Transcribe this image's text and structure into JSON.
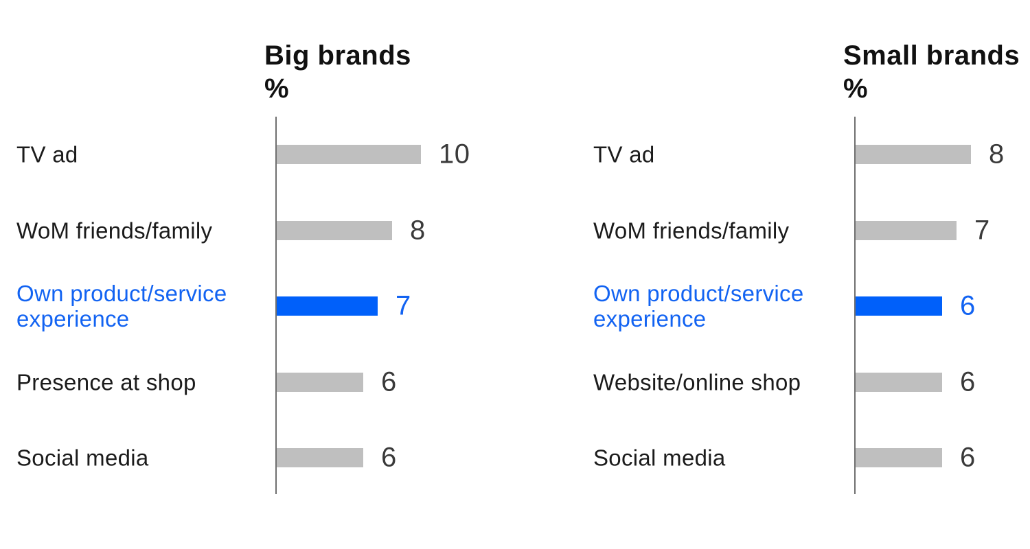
{
  "colors": {
    "bar_gray": "#bfbfbf",
    "bar_blue": "#0060fa",
    "text_blue": "#1263f2",
    "label_dark": "#1b1b1b",
    "value_dark": "#3a3a3a",
    "axis_gray": "#6f6f6f",
    "title_dark": "#111111"
  },
  "chart_data": [
    {
      "type": "bar",
      "orientation": "horizontal",
      "title": "Big brands",
      "unit_label": "%",
      "categories": [
        "TV ad",
        "WoM friends/family",
        "Own product/service experience",
        "Presence at shop",
        "Social media"
      ],
      "values": [
        10,
        8,
        7,
        6,
        6
      ],
      "value_labels": [
        "10",
        "8",
        "7",
        "6",
        "6"
      ],
      "highlight_index": 2,
      "xlim": [
        0,
        10
      ],
      "grid": false,
      "legend": "none"
    },
    {
      "type": "bar",
      "orientation": "horizontal",
      "title": "Small brands",
      "unit_label": "%",
      "categories": [
        "TV ad",
        "WoM friends/family",
        "Own product/service experience",
        "Website/online shop",
        "Social media"
      ],
      "values": [
        8,
        7,
        6,
        6,
        6
      ],
      "value_labels": [
        "8",
        "7",
        "6",
        "6",
        "6"
      ],
      "highlight_index": 2,
      "xlim": [
        0,
        10
      ],
      "grid": false,
      "legend": "none"
    }
  ]
}
